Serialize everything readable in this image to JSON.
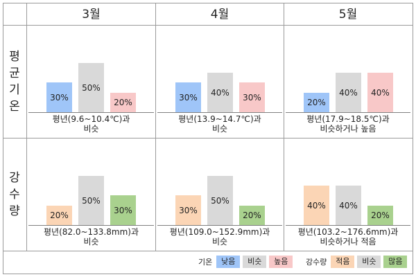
{
  "columns": [
    "3월",
    "4월",
    "5월"
  ],
  "rows": [
    {
      "label": [
        "평",
        "균",
        "기",
        "온"
      ]
    },
    {
      "label": [
        "강",
        "수",
        "량"
      ]
    }
  ],
  "chart_data": [
    {
      "type": "bar",
      "group": "기온",
      "month": "3월",
      "categories": [
        "낮음",
        "비슷",
        "높음"
      ],
      "values": [
        30,
        50,
        20
      ],
      "value_labels": [
        "30%",
        "50%",
        "20%"
      ],
      "colors": [
        "#9fc5f8",
        "#d9d9d9",
        "#f8c8c8"
      ],
      "caption": [
        "평년(9.6~10.4℃)과",
        "비슷"
      ]
    },
    {
      "type": "bar",
      "group": "기온",
      "month": "4월",
      "categories": [
        "낮음",
        "비슷",
        "높음"
      ],
      "values": [
        30,
        40,
        30
      ],
      "value_labels": [
        "30%",
        "40%",
        "30%"
      ],
      "colors": [
        "#9fc5f8",
        "#d9d9d9",
        "#f8c8c8"
      ],
      "caption": [
        "평년(13.9~14.7℃)과",
        "비슷"
      ]
    },
    {
      "type": "bar",
      "group": "기온",
      "month": "5월",
      "categories": [
        "낮음",
        "비슷",
        "높음"
      ],
      "values": [
        20,
        40,
        40
      ],
      "value_labels": [
        "20%",
        "40%",
        "40%"
      ],
      "colors": [
        "#9fc5f8",
        "#d9d9d9",
        "#f8c8c8"
      ],
      "caption": [
        "평년(17.9~18.5℃)과",
        "비슷하거나 높음"
      ]
    },
    {
      "type": "bar",
      "group": "강수량",
      "month": "3월",
      "categories": [
        "적음",
        "비슷",
        "많음"
      ],
      "values": [
        20,
        50,
        30
      ],
      "value_labels": [
        "20%",
        "50%",
        "30%"
      ],
      "colors": [
        "#fbd5b5",
        "#d9d9d9",
        "#a9d18e"
      ],
      "caption": [
        "평년(82.0~133.8mm)과",
        "비슷"
      ]
    },
    {
      "type": "bar",
      "group": "강수량",
      "month": "4월",
      "categories": [
        "적음",
        "비슷",
        "많음"
      ],
      "values": [
        30,
        50,
        20
      ],
      "value_labels": [
        "30%",
        "50%",
        "20%"
      ],
      "colors": [
        "#fbd5b5",
        "#d9d9d9",
        "#a9d18e"
      ],
      "caption": [
        "평년(109.0~152.9mm)과",
        "비슷"
      ]
    },
    {
      "type": "bar",
      "group": "강수량",
      "month": "5월",
      "categories": [
        "적음",
        "비슷",
        "많음"
      ],
      "values": [
        40,
        40,
        20
      ],
      "value_labels": [
        "40%",
        "40%",
        "20%"
      ],
      "colors": [
        "#fbd5b5",
        "#d9d9d9",
        "#a9d18e"
      ],
      "caption": [
        "평년(103.2~176.6mm)과",
        "비슷하거나 적음"
      ]
    }
  ],
  "legend": [
    {
      "title": "기온",
      "items": [
        {
          "label": "낮음",
          "color": "#9fc5f8"
        },
        {
          "label": "비슷",
          "color": "#d9d9d9"
        },
        {
          "label": "높음",
          "color": "#f8c8c8"
        }
      ]
    },
    {
      "title": "강수량",
      "items": [
        {
          "label": "적음",
          "color": "#fbd5b5"
        },
        {
          "label": "비슷",
          "color": "#d9d9d9"
        },
        {
          "label": "많음",
          "color": "#a9d18e"
        }
      ]
    }
  ]
}
